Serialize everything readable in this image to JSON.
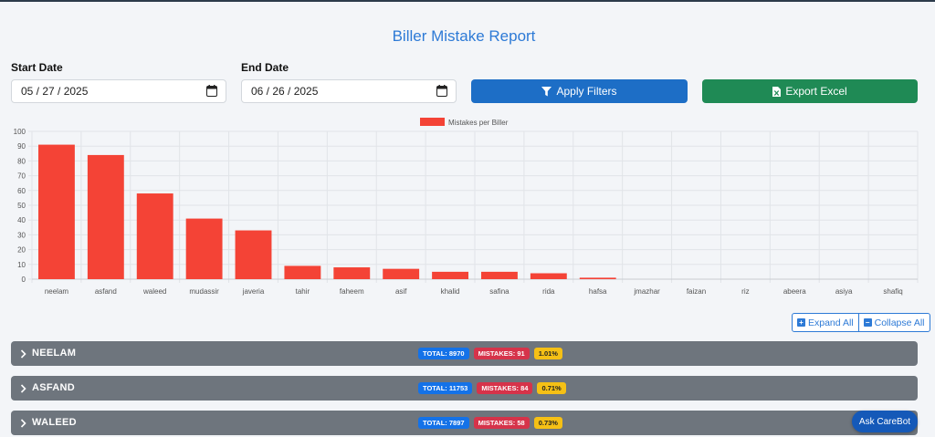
{
  "page": {
    "title": "Biller Mistake Report"
  },
  "filters": {
    "start_label": "Start Date",
    "start_value": "05 / 27 / 2025",
    "end_label": "End Date",
    "end_value": "06 / 26 / 2025",
    "apply_label": "Apply Filters",
    "export_label": "Export Excel"
  },
  "chart_data": {
    "type": "bar",
    "categories": [
      "neelam",
      "asfand",
      "waleed",
      "mudassir",
      "javeria",
      "tahir",
      "faheem",
      "asif",
      "khalid",
      "safina",
      "rida",
      "hafsa",
      "jmazhar",
      "faizan",
      "riz",
      "abeera",
      "asiya",
      "shafiq"
    ],
    "series": [
      {
        "name": "Mistakes per Biller",
        "values": [
          91,
          84,
          58,
          41,
          33,
          9,
          8,
          7,
          5,
          5,
          4,
          1,
          0,
          0,
          0,
          0,
          0,
          0
        ]
      }
    ],
    "ylim": [
      0,
      100
    ],
    "yticks": [
      0,
      10,
      20,
      30,
      40,
      50,
      60,
      70,
      80,
      90,
      100
    ],
    "grid": true,
    "legend": "top-center",
    "color": "#f44336"
  },
  "controls": {
    "expand_label": "Expand All",
    "collapse_label": "Collapse All"
  },
  "billers": [
    {
      "name": "NEELAM",
      "total": "TOTAL: 8970",
      "mistakes": "MISTAKES: 91",
      "pct": "1.01%"
    },
    {
      "name": "ASFAND",
      "total": "TOTAL: 11753",
      "mistakes": "MISTAKES: 84",
      "pct": "0.71%"
    },
    {
      "name": "WALEED",
      "total": "TOTAL: 7897",
      "mistakes": "MISTAKES: 58",
      "pct": "0.73%"
    }
  ],
  "carebot": {
    "label": "Ask CareBot"
  }
}
